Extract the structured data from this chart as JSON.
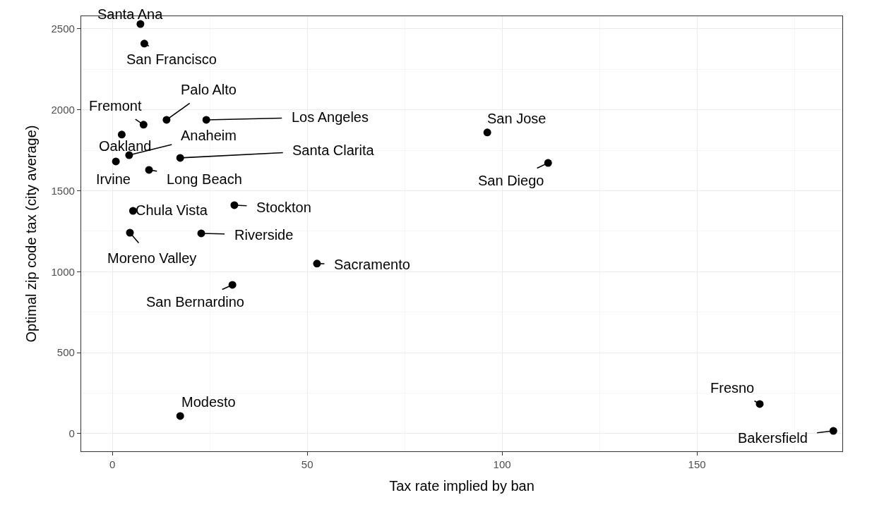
{
  "chart_data": {
    "type": "scatter",
    "xlabel": "Tax rate implied by ban",
    "ylabel": "Optimal zip code tax (city average)",
    "series": [
      {
        "color": "#000000",
        "x": [
          7.2,
          8.2,
          13.9,
          8.0,
          24.1,
          2.4,
          4.3,
          17.4,
          0.9,
          9.4,
          96.2,
          111.8,
          5.3,
          31.3,
          4.5,
          22.8,
          52.5,
          30.8,
          17.4,
          166.1,
          185.0
        ],
        "values": [
          2530,
          2409,
          1938,
          1908,
          1938,
          1847,
          1720,
          1703,
          1681,
          1629,
          1860,
          1672,
          1376,
          1411,
          1241,
          1237,
          1050,
          919,
          109,
          183,
          17
        ]
      }
    ],
    "annotations": [
      {
        "text": "Santa Ana",
        "x": 7.2,
        "y": 2530
      },
      {
        "text": "San Francisco",
        "x": 8.2,
        "y": 2409
      },
      {
        "text": "Palo Alto",
        "x": 13.9,
        "y": 1938
      },
      {
        "text": "Fremont",
        "x": 8.0,
        "y": 1908
      },
      {
        "text": "Los Angeles",
        "x": 24.1,
        "y": 1938
      },
      {
        "text": "Oakland",
        "x": 2.4,
        "y": 1847
      },
      {
        "text": "Anaheim",
        "x": 4.3,
        "y": 1720
      },
      {
        "text": "Santa Clarita",
        "x": 17.4,
        "y": 1703
      },
      {
        "text": "Irvine",
        "x": 0.9,
        "y": 1681
      },
      {
        "text": "Long Beach",
        "x": 9.4,
        "y": 1629
      },
      {
        "text": "San Jose",
        "x": 96.2,
        "y": 1860
      },
      {
        "text": "San Diego",
        "x": 111.8,
        "y": 1672
      },
      {
        "text": "Chula Vista",
        "x": 5.3,
        "y": 1376
      },
      {
        "text": "Stockton",
        "x": 31.3,
        "y": 1411
      },
      {
        "text": "Moreno Valley",
        "x": 4.5,
        "y": 1241
      },
      {
        "text": "Riverside",
        "x": 22.8,
        "y": 1237
      },
      {
        "text": "Sacramento",
        "x": 52.5,
        "y": 1050
      },
      {
        "text": "San Bernardino",
        "x": 30.8,
        "y": 919
      },
      {
        "text": "Modesto",
        "x": 17.4,
        "y": 109
      },
      {
        "text": "Fresno",
        "x": 166.1,
        "y": 183
      },
      {
        "text": "Bakersfield",
        "x": 185.0,
        "y": 17
      }
    ],
    "xlim": [
      -8,
      187.3
    ],
    "xticks": [
      0,
      50,
      100,
      150
    ],
    "ylim": [
      -109,
      2578
    ],
    "yticks": [
      0,
      500,
      1000,
      1500,
      2000,
      2500
    ],
    "grid": true,
    "marker": "circle"
  }
}
